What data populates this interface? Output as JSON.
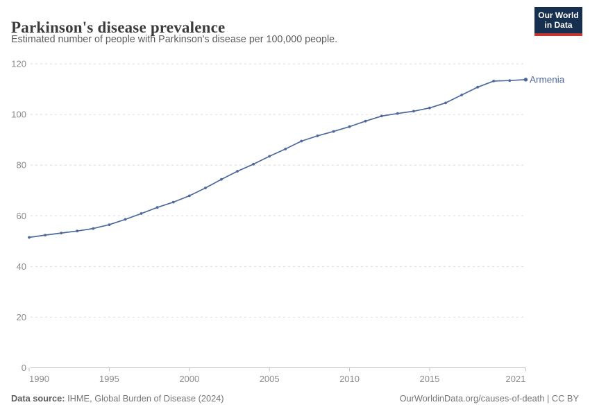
{
  "header": {
    "title": "Parkinson's disease prevalence",
    "subtitle": "Estimated number of people with Parkinson's disease per 100,000 people.",
    "logo": {
      "line1": "Our World",
      "line2": "in Data",
      "bg_color": "#18304f",
      "bar_color": "#c8372d"
    }
  },
  "chart_data": {
    "type": "line",
    "title": "Parkinson's disease prevalence",
    "subtitle": "Estimated number of people with Parkinson's disease per 100,000 people.",
    "x": [
      1990,
      1991,
      1992,
      1993,
      1994,
      1995,
      1996,
      1997,
      1998,
      1999,
      2000,
      2001,
      2002,
      2003,
      2004,
      2005,
      2006,
      2007,
      2008,
      2009,
      2010,
      2011,
      2012,
      2013,
      2014,
      2015,
      2016,
      2017,
      2018,
      2019,
      2020,
      2021
    ],
    "series": [
      {
        "name": "Armenia",
        "color": "#4d689c",
        "values": [
          51.5,
          52.4,
          53.2,
          54,
          55,
          56.5,
          58.6,
          60.9,
          63.3,
          65.4,
          67.9,
          71,
          74.4,
          77.6,
          80.4,
          83.5,
          86.4,
          89.5,
          91.6,
          93.3,
          95.2,
          97.4,
          99.4,
          100.4,
          101.3,
          102.6,
          104.6,
          107.7,
          110.8,
          113.2,
          113.4,
          113.8
        ]
      }
    ],
    "xlabel": "",
    "ylabel": "",
    "xlim": [
      1990,
      2021
    ],
    "ylim": [
      0,
      120
    ],
    "x_ticks": [
      1990,
      1995,
      2000,
      2005,
      2010,
      2015,
      2021
    ],
    "y_ticks": [
      0,
      20,
      40,
      60,
      80,
      100,
      120
    ],
    "grid": "horizontal-dashed",
    "legend_position": "end-of-line-label"
  },
  "footer": {
    "source_label": "Data source:",
    "source_text": " IHME, Global Burden of Disease (2024)",
    "right_text": "OurWorldinData.org/causes-of-death | CC BY"
  }
}
